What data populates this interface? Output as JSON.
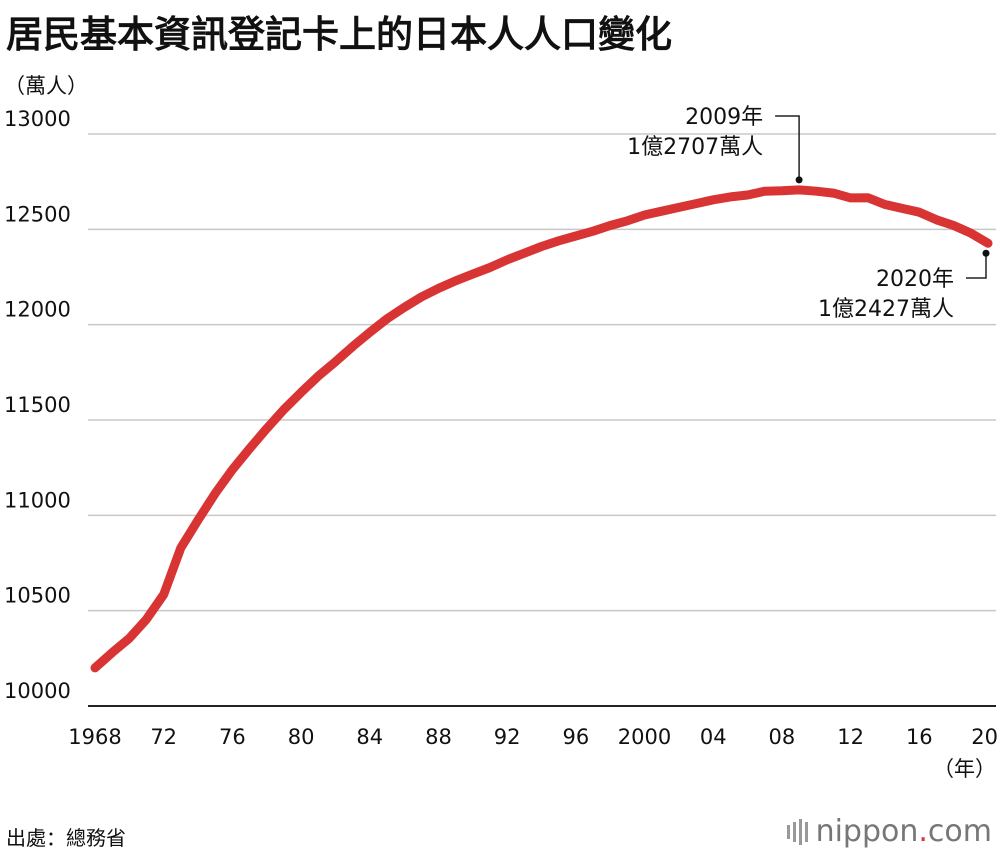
{
  "chart_data": {
    "type": "line",
    "title": "居民基本資訊登記卡上的日本人人口變化",
    "ylabel": "（萬人）",
    "xlabel": "（年）",
    "source": "出處：總務省",
    "ylim": [
      10000,
      13000
    ],
    "xlim": [
      1968,
      2020
    ],
    "yticks": [
      10000,
      10500,
      11000,
      11500,
      12000,
      12500,
      13000
    ],
    "ytick_labels": [
      "10000",
      "10500",
      "11000",
      "11500",
      "12000",
      "12500",
      "13000"
    ],
    "xticks": [
      1968,
      1972,
      1976,
      1980,
      1984,
      1988,
      1992,
      1996,
      2000,
      2004,
      2008,
      2012,
      2016,
      2020
    ],
    "xtick_labels": [
      "1968",
      "72",
      "76",
      "80",
      "84",
      "88",
      "92",
      "96",
      "2000",
      "04",
      "08",
      "12",
      "16",
      "20"
    ],
    "grid": true,
    "color": "#d93434",
    "x": [
      1968,
      1969,
      1970,
      1971,
      1972,
      1973,
      1974,
      1975,
      1976,
      1977,
      1978,
      1979,
      1980,
      1981,
      1982,
      1983,
      1984,
      1985,
      1986,
      1987,
      1988,
      1989,
      1990,
      1991,
      1992,
      1993,
      1994,
      1995,
      1996,
      1997,
      1998,
      1999,
      2000,
      2001,
      2002,
      2003,
      2004,
      2005,
      2006,
      2007,
      2008,
      2009,
      2010,
      2011,
      2012,
      2013,
      2014,
      2015,
      2016,
      2017,
      2018,
      2019,
      2020
    ],
    "y": [
      10200,
      10280,
      10355,
      10455,
      10585,
      10830,
      10975,
      11115,
      11240,
      11350,
      11455,
      11555,
      11645,
      11730,
      11805,
      11885,
      11960,
      12030,
      12090,
      12145,
      12190,
      12230,
      12265,
      12300,
      12340,
      12375,
      12410,
      12440,
      12465,
      12490,
      12520,
      12545,
      12575,
      12595,
      12615,
      12635,
      12655,
      12670,
      12680,
      12700,
      12702,
      12707,
      12700,
      12690,
      12665,
      12666,
      12630,
      12610,
      12590,
      12550,
      12520,
      12480,
      12427
    ],
    "annotations": [
      {
        "year_label": "2009年",
        "value_label": "1億2707萬人",
        "x": 2009,
        "y": 12707
      },
      {
        "year_label": "2020年",
        "value_label": "1億2427萬人",
        "x": 2020,
        "y": 12427
      }
    ]
  },
  "brand": {
    "name": "nippon",
    "dot": ".",
    "suffix": "com"
  }
}
